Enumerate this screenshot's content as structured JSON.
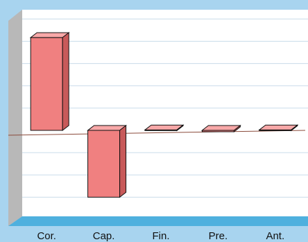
{
  "chart_data": {
    "type": "bar",
    "style": "3d",
    "categories": [
      "Cor.",
      "Cap.",
      "Fin.",
      "Pre.",
      "Ant."
    ],
    "values": [
      100,
      -72,
      0.5,
      -1.5,
      0.5
    ],
    "ylim": [
      -95,
      130
    ],
    "grid": true,
    "legend": "none",
    "colors": {
      "background": "#a8d4ef",
      "plot_area": "#ffffff",
      "gridline": "#c9dcea",
      "baseline": "#8a4a3a",
      "bar_front": "#f08080",
      "bar_top": "#f8a8a8",
      "bar_side": "#c85a5a",
      "bar_edge": "#111111",
      "left_wall": "#b8b8b8",
      "floor": "#4fb0de"
    }
  }
}
